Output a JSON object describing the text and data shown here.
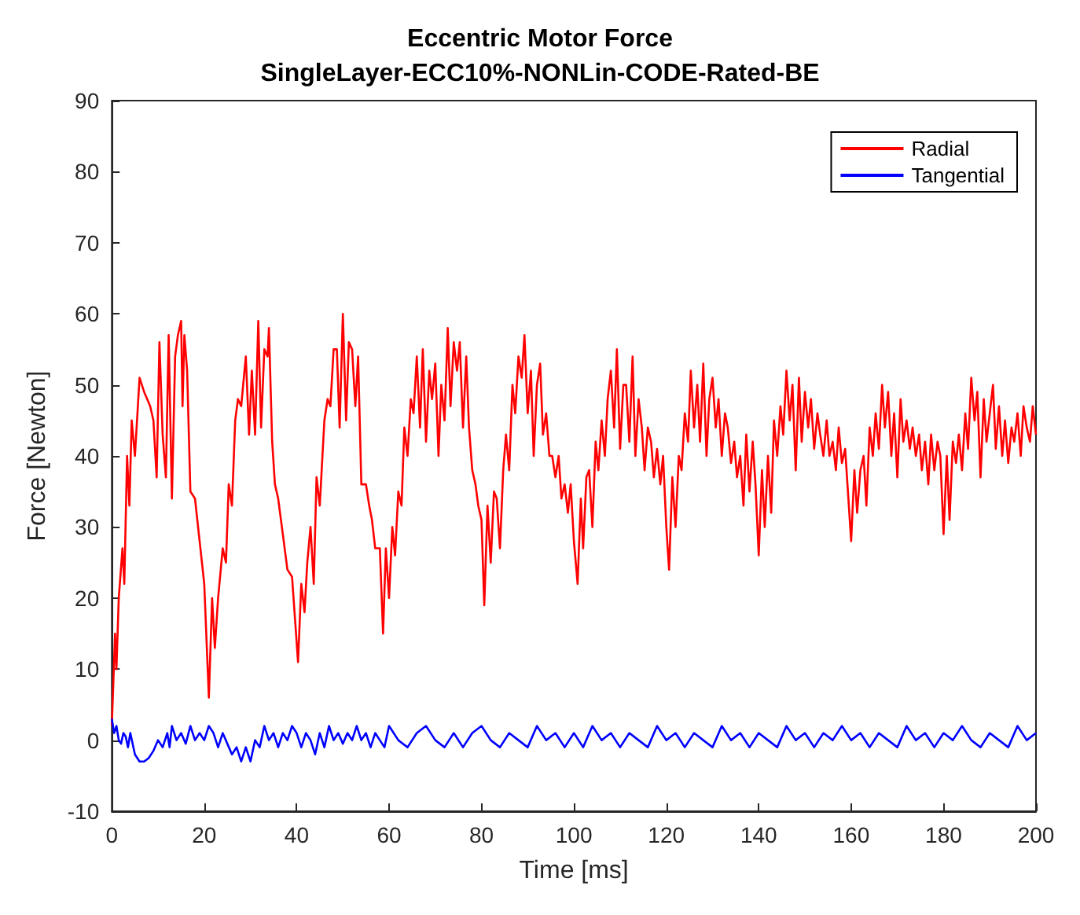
{
  "chart_data": {
    "type": "line",
    "title": "Eccentric Motor Force",
    "subtitle": "SingleLayer-ECC10%-NONLin-CODE-Rated-BE",
    "xlabel": "Time [ms]",
    "ylabel": "Force [Newton]",
    "xlim": [
      0,
      200
    ],
    "xticks": [
      0,
      20,
      40,
      60,
      80,
      100,
      120,
      140,
      160,
      180,
      200
    ],
    "ylim": [
      -10,
      90
    ],
    "yticks": [
      -10,
      0,
      10,
      20,
      30,
      40,
      50,
      60,
      70,
      80,
      90
    ],
    "grid": false,
    "legend": "top right",
    "line_style": "solid",
    "marker": "none",
    "series": [
      {
        "name": "Radial",
        "color": "#ff0000",
        "x": [
          0,
          0.7,
          1,
          1.5,
          2.3,
          2.7,
          3.3,
          3.8,
          4.3,
          5,
          6,
          7,
          8.3,
          9,
          9.7,
          10.3,
          11,
          11.7,
          12.3,
          13,
          13.7,
          14.3,
          15,
          15.3,
          15.7,
          16.3,
          17,
          18,
          19,
          20,
          21,
          21.7,
          22.3,
          23,
          24,
          24.7,
          25.3,
          26,
          26.7,
          27.3,
          28,
          29,
          29.7,
          30.3,
          31,
          31.7,
          32.3,
          33,
          33.7,
          34,
          34.7,
          35.3,
          36,
          37,
          38,
          39,
          40.3,
          41,
          41.7,
          42.3,
          43,
          43.7,
          44.3,
          45,
          46,
          46.7,
          47.3,
          48,
          48.7,
          49.3,
          50,
          50.7,
          51.3,
          52,
          52.7,
          53.3,
          54,
          55,
          55.7,
          56.3,
          57,
          58,
          58.7,
          59.3,
          60,
          60.7,
          61.3,
          62,
          62.7,
          63.3,
          64,
          64.7,
          65.3,
          66,
          66.7,
          67.3,
          68,
          68.7,
          69.3,
          70,
          70.7,
          71.3,
          72,
          72.7,
          73.3,
          74,
          74.7,
          75.3,
          76,
          76.7,
          77.3,
          78,
          78.7,
          79.3,
          80,
          80.6,
          81.3,
          82,
          82.7,
          83.3,
          84,
          84.7,
          85.3,
          86,
          86.7,
          87.3,
          88,
          88.7,
          89.3,
          90,
          90.7,
          91.3,
          92,
          92.7,
          93.3,
          94,
          94.7,
          95.3,
          96,
          96.7,
          97.3,
          98,
          98.7,
          99.3,
          100,
          100.8,
          101.5,
          102,
          102.7,
          103.3,
          104,
          104.7,
          105.3,
          106,
          106.7,
          107.3,
          108,
          108.7,
          109.3,
          110,
          110.7,
          111.3,
          112,
          112.7,
          113.3,
          114,
          114.7,
          115.3,
          116,
          116.7,
          117.3,
          118,
          118.7,
          119.3,
          120,
          120.6,
          121.3,
          122,
          122.7,
          123.3,
          124,
          124.7,
          125.3,
          126,
          126.7,
          127.3,
          128,
          128.7,
          129.3,
          130,
          130.7,
          131.3,
          132,
          132.7,
          133.3,
          134,
          134.7,
          135.3,
          136,
          136.7,
          137.3,
          138,
          138.7,
          139.3,
          140,
          140.7,
          141.3,
          142,
          142.7,
          143.3,
          144,
          144.7,
          145.3,
          146,
          146.7,
          147.3,
          148,
          148.7,
          149.3,
          150,
          150.7,
          151.3,
          152,
          152.7,
          153.3,
          154,
          154.7,
          155.3,
          156,
          156.7,
          157.3,
          158,
          158.7,
          159.3,
          160,
          160.7,
          161.3,
          162,
          162.7,
          163.3,
          164,
          164.7,
          165.3,
          166,
          166.7,
          167.3,
          168,
          168.7,
          169.3,
          170,
          170.7,
          171.3,
          172,
          172.7,
          173.3,
          174,
          174.7,
          175.3,
          176,
          176.7,
          177.3,
          178,
          178.7,
          179.3,
          180,
          180.7,
          181.3,
          182,
          182.7,
          183.3,
          184,
          184.7,
          185.3,
          186,
          186.7,
          187.3,
          188,
          188.7,
          189.3,
          190,
          190.7,
          191.3,
          192,
          192.7,
          193.3,
          194,
          194.7,
          195.3,
          196,
          196.7,
          197.3,
          198,
          198.7,
          199.3,
          200
        ],
        "values": [
          2,
          15,
          10,
          20,
          27,
          22,
          40,
          33,
          45,
          40,
          51,
          49,
          47,
          45,
          37,
          56,
          43,
          37,
          57,
          34,
          54,
          57,
          59,
          47,
          57,
          52,
          35,
          34,
          28,
          22,
          6,
          20,
          13,
          20,
          27,
          25,
          36,
          33,
          45,
          48,
          47,
          54,
          43,
          52,
          43,
          59,
          44,
          55,
          54,
          58,
          42,
          36,
          34,
          29,
          24,
          23,
          11,
          22,
          18,
          25,
          30,
          22,
          37,
          33,
          45,
          48,
          47,
          55,
          55,
          44,
          60,
          45,
          56,
          55,
          47,
          54,
          36,
          36,
          33,
          31,
          27,
          27,
          15,
          27,
          20,
          30,
          26,
          35,
          33,
          44,
          40,
          48,
          46,
          54,
          44,
          55,
          42,
          52,
          48,
          53,
          40,
          50,
          45,
          58,
          47,
          56,
          52,
          56,
          44,
          54,
          44,
          38,
          36,
          33,
          31,
          19,
          33,
          25,
          35,
          34,
          27,
          38,
          43,
          38,
          50,
          46,
          54,
          51,
          57,
          46,
          52,
          40,
          50,
          53,
          43,
          46,
          40,
          40,
          37,
          40,
          34,
          36,
          32,
          36,
          28,
          22,
          34,
          27,
          37,
          38,
          30,
          42,
          38,
          45,
          40,
          48,
          52,
          44,
          55,
          41,
          50,
          50,
          42,
          54,
          40,
          48,
          44,
          38,
          44,
          42,
          37,
          41,
          36,
          40,
          30,
          24,
          37,
          30,
          40,
          38,
          46,
          42,
          52,
          44,
          50,
          42,
          53,
          40,
          48,
          51,
          44,
          48,
          40,
          46,
          44,
          39,
          42,
          37,
          40,
          33,
          43,
          35,
          42,
          36,
          26,
          38,
          30,
          40,
          32,
          45,
          40,
          47,
          43,
          52,
          45,
          50,
          38,
          51,
          42,
          49,
          44,
          48,
          41,
          46,
          43,
          40,
          45,
          40,
          42,
          38,
          44,
          39,
          41,
          35,
          28,
          38,
          32,
          38,
          40,
          33,
          44,
          40,
          46,
          41,
          50,
          44,
          49,
          40,
          46,
          37,
          48,
          42,
          45,
          41,
          44,
          40,
          43,
          38,
          42,
          36,
          43,
          38,
          42,
          40,
          29,
          40,
          31,
          42,
          39,
          43,
          38,
          46,
          41,
          51,
          45,
          49,
          37,
          48,
          42,
          46,
          50,
          41,
          47,
          40,
          45,
          39,
          44,
          42,
          46,
          40,
          47,
          44,
          42,
          47,
          43
        ]
      },
      {
        "name": "Tangential",
        "color": "#0000ff",
        "x": [
          0,
          0.5,
          1,
          1.5,
          2,
          2.5,
          3,
          3.5,
          4,
          5,
          6,
          7,
          8,
          9,
          10,
          11,
          12,
          12.5,
          13,
          14,
          15,
          16,
          17,
          18,
          19,
          20,
          21,
          22,
          23,
          24,
          25,
          26,
          27,
          28,
          29,
          30,
          31,
          32,
          33,
          34,
          35,
          36,
          37,
          38,
          39,
          40,
          41,
          42,
          43,
          44,
          45,
          46,
          47,
          48,
          49,
          50,
          51,
          52,
          53,
          54,
          55,
          56,
          57,
          58,
          59,
          60,
          62,
          64,
          66,
          68,
          70,
          72,
          74,
          76,
          78,
          80,
          82,
          84,
          86,
          88,
          90,
          92,
          94,
          96,
          98,
          100,
          102,
          104,
          106,
          108,
          110,
          112,
          114,
          116,
          118,
          120,
          122,
          124,
          126,
          128,
          130,
          132,
          134,
          136,
          138,
          140,
          142,
          144,
          146,
          148,
          150,
          152,
          154,
          156,
          158,
          160,
          162,
          164,
          166,
          168,
          170,
          172,
          174,
          176,
          178,
          180,
          182,
          184,
          186,
          188,
          190,
          192,
          194,
          196,
          198,
          200
        ],
        "values": [
          3,
          1,
          2,
          0,
          -0.5,
          1,
          0.5,
          -1,
          1,
          -2,
          -3,
          -3,
          -2.5,
          -1.5,
          0,
          -1,
          1,
          -1,
          2,
          0,
          1,
          -0.5,
          2,
          0,
          1,
          0,
          2,
          1,
          -1,
          1,
          -0.5,
          -2,
          -1,
          -3,
          -1,
          -3,
          0,
          -1,
          2,
          0,
          1,
          -1,
          1,
          0,
          2,
          1,
          -1,
          1,
          0,
          -2,
          1,
          -1,
          2,
          0,
          1,
          -0.5,
          1,
          0,
          2,
          0,
          1,
          -1,
          1,
          0,
          -1,
          2,
          0,
          -1,
          1,
          2,
          0,
          -1,
          1,
          -1,
          1,
          2,
          0,
          -1,
          1,
          0,
          -1,
          2,
          0,
          1,
          -1,
          1,
          -1,
          2,
          0,
          1,
          -1,
          1,
          0,
          -1,
          2,
          0,
          1,
          -1,
          1,
          0,
          -1,
          2,
          0,
          1,
          -1,
          1,
          0,
          -1,
          2,
          0,
          1,
          -1,
          1,
          0,
          2,
          0,
          1,
          -1,
          1,
          0,
          -1,
          2,
          0,
          1,
          -1,
          1,
          0,
          2,
          0,
          -1,
          1,
          0,
          -1,
          2,
          0,
          1
        ]
      }
    ]
  }
}
